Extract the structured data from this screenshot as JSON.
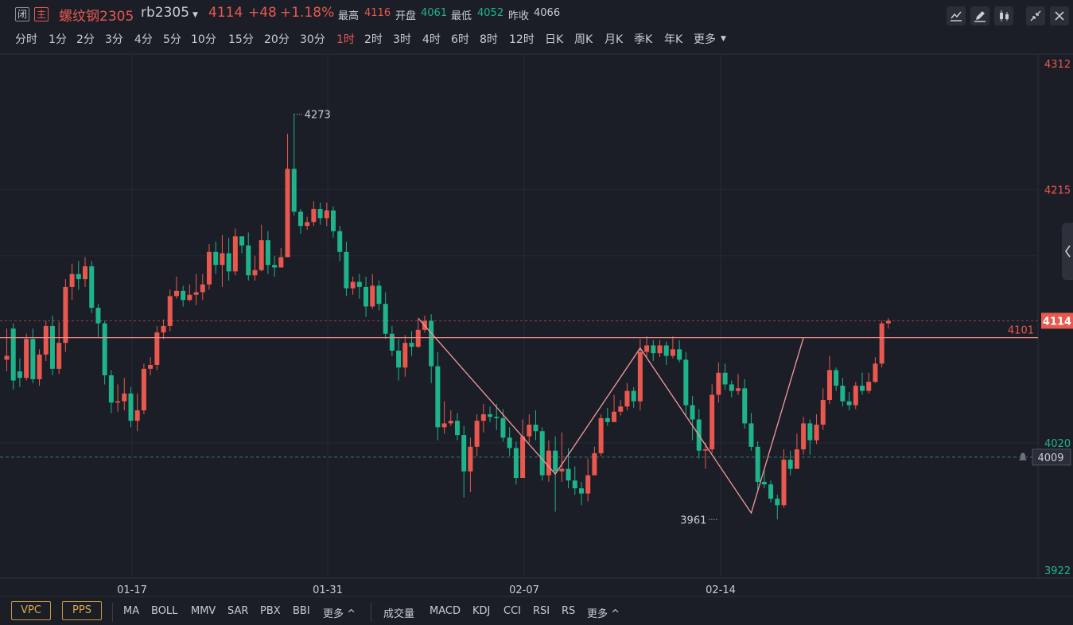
{
  "header": {
    "close_tag": "闭",
    "main_tag": "主",
    "name": "螺纹钢2305",
    "code": "rb2305",
    "last": "4114",
    "change": "+48",
    "change_pct": "+1.18%",
    "high_label": "最高",
    "high": "4116",
    "open_label": "开盘",
    "open": "4061",
    "low_label": "最低",
    "low": "4052",
    "prev_close_label": "昨收",
    "prev_close": "4066"
  },
  "toolbar_icons": [
    "line-chart-icon",
    "draw-pencil-icon",
    "candlestick-icon",
    "collapse-icon",
    "close-icon"
  ],
  "periods": [
    "分时",
    "1分",
    "2分",
    "3分",
    "4分",
    "5分",
    "10分",
    "15分",
    "20分",
    "30分",
    "1时",
    "2时",
    "3时",
    "4时",
    "6时",
    "8时",
    "12时",
    "日K",
    "周K",
    "月K",
    "季K",
    "年K",
    "更多"
  ],
  "active_period": "1时",
  "price_axis": {
    "ticks": [
      "4312",
      "4215",
      "4020",
      "3922"
    ],
    "last_price_tag": "4114",
    "line_label": "4101",
    "alert_price": "4009"
  },
  "x_axis": {
    "labels": [
      "01-17",
      "01-31",
      "02-07",
      "02-14"
    ]
  },
  "annotations": {
    "high_mark": "4273",
    "low_mark": "3961"
  },
  "colors": {
    "up": "#e8584f",
    "down": "#1fb38a",
    "background": "#1b1e27",
    "accent": "#d9a94a"
  },
  "footer": {
    "buttons": [
      "VPC",
      "PPS"
    ],
    "main_indicators": [
      "MA",
      "BOLL",
      "MMV",
      "SAR",
      "PBX",
      "BBI",
      "更多 ^"
    ],
    "sub_indicators": [
      "成交量",
      "MACD",
      "KDJ",
      "CCI",
      "RSI",
      "RS",
      "更多 ^"
    ]
  },
  "chart_data": {
    "type": "candlestick",
    "ylim": [
      3922,
      4312
    ],
    "candles": [
      [
        4084,
        4087,
        4108,
        4075
      ],
      [
        4108,
        4068,
        4112,
        4061
      ],
      [
        4075,
        4070,
        4085,
        4063
      ],
      [
        4070,
        4100,
        4104,
        4068
      ],
      [
        4100,
        4069,
        4108,
        4066
      ],
      [
        4069,
        4088,
        4092,
        4064
      ],
      [
        4088,
        4110,
        4114,
        4083
      ],
      [
        4110,
        4077,
        4118,
        4072
      ],
      [
        4077,
        4097,
        4113,
        4073
      ],
      [
        4097,
        4140,
        4146,
        4090
      ],
      [
        4140,
        4150,
        4158,
        4130
      ],
      [
        4150,
        4146,
        4160,
        4138
      ],
      [
        4146,
        4156,
        4163,
        4140
      ],
      [
        4156,
        4124,
        4160,
        4120
      ],
      [
        4124,
        4112,
        4127,
        4101
      ],
      [
        4112,
        4072,
        4114,
        4065
      ],
      [
        4072,
        4051,
        4076,
        4043
      ],
      [
        4051,
        4052,
        4065,
        4044
      ],
      [
        4052,
        4058,
        4070,
        4045
      ],
      [
        4058,
        4037,
        4063,
        4032
      ],
      [
        4037,
        4045,
        4058,
        4029
      ],
      [
        4045,
        4077,
        4081,
        4042
      ],
      [
        4077,
        4080,
        4086,
        4072
      ],
      [
        4080,
        4105,
        4110,
        4076
      ],
      [
        4105,
        4110,
        4115,
        4100
      ],
      [
        4110,
        4133,
        4138,
        4106
      ],
      [
        4133,
        4137,
        4148,
        4131
      ],
      [
        4137,
        4130,
        4141,
        4125
      ],
      [
        4130,
        4134,
        4142,
        4129
      ],
      [
        4134,
        4136,
        4150,
        4126
      ],
      [
        4136,
        4142,
        4150,
        4130
      ],
      [
        4142,
        4167,
        4173,
        4138
      ],
      [
        4167,
        4157,
        4175,
        4150
      ],
      [
        4157,
        4166,
        4180,
        4140
      ],
      [
        4166,
        4152,
        4178,
        4145
      ],
      [
        4152,
        4179,
        4185,
        4149
      ],
      [
        4179,
        4172,
        4178,
        4166
      ],
      [
        4172,
        4149,
        4182,
        4145
      ],
      [
        4149,
        4153,
        4164,
        4145
      ],
      [
        4153,
        4176,
        4188,
        4152
      ],
      [
        4176,
        4157,
        4183,
        4150
      ],
      [
        4157,
        4155,
        4164,
        4148
      ],
      [
        4155,
        4163,
        4170,
        4156
      ],
      [
        4163,
        4231,
        4258,
        4222
      ],
      [
        4231,
        4198,
        4273,
        4195
      ],
      [
        4198,
        4187,
        4200,
        4181
      ],
      [
        4187,
        4190,
        4194,
        4184
      ],
      [
        4190,
        4200,
        4206,
        4187
      ],
      [
        4200,
        4193,
        4205,
        4188
      ],
      [
        4193,
        4199,
        4205,
        4187
      ],
      [
        4199,
        4183,
        4202,
        4178
      ],
      [
        4183,
        4167,
        4187,
        4160
      ],
      [
        4167,
        4139,
        4175,
        4133
      ],
      [
        4139,
        4144,
        4148,
        4134
      ],
      [
        4144,
        4140,
        4150,
        4131
      ],
      [
        4140,
        4125,
        4148,
        4117
      ],
      [
        4125,
        4141,
        4150,
        4123
      ],
      [
        4141,
        4127,
        4145,
        4122
      ],
      [
        4127,
        4104,
        4136,
        4100
      ],
      [
        4104,
        4091,
        4110,
        4087
      ],
      [
        4091,
        4078,
        4100,
        4068
      ],
      [
        4078,
        4097,
        4103,
        4071
      ],
      [
        4097,
        4094,
        4106,
        4087
      ],
      [
        4094,
        4107,
        4115,
        4093
      ],
      [
        4107,
        4114,
        4118,
        4105
      ],
      [
        4114,
        4079,
        4119,
        4066
      ],
      [
        4079,
        4032,
        4090,
        4022
      ],
      [
        4032,
        4035,
        4052,
        4027
      ],
      [
        4035,
        4037,
        4045,
        4033
      ],
      [
        4037,
        4026,
        4043,
        4022
      ],
      [
        4026,
        3998,
        4033,
        3978
      ],
      [
        3998,
        4017,
        4024,
        3982
      ],
      [
        4017,
        4037,
        4042,
        4010
      ],
      [
        4037,
        4042,
        4050,
        4028
      ],
      [
        4042,
        4040,
        4048,
        4036
      ],
      [
        4040,
        4039,
        4050,
        4030
      ],
      [
        4039,
        4024,
        4046,
        4021
      ],
      [
        4024,
        4016,
        4032,
        4010
      ],
      [
        4016,
        3993,
        4021,
        3988
      ],
      [
        3993,
        4025,
        4038,
        4017
      ],
      [
        4025,
        4034,
        4042,
        4020
      ],
      [
        4034,
        4029,
        4045,
        4022
      ],
      [
        4029,
        3995,
        4032,
        3991
      ],
      [
        3995,
        4014,
        4022,
        3990
      ],
      [
        4014,
        3998,
        4025,
        3967
      ],
      [
        3998,
        4000,
        4028,
        3990
      ],
      [
        4000,
        3991,
        4016,
        3985
      ],
      [
        3991,
        3985,
        4002,
        3980
      ],
      [
        3985,
        3981,
        3990,
        3972
      ],
      [
        3981,
        3995,
        4008,
        3975
      ],
      [
        3995,
        4012,
        4017,
        4008
      ],
      [
        4012,
        4039,
        4042,
        4010
      ],
      [
        4039,
        4036,
        4047,
        4033
      ],
      [
        4036,
        4044,
        4057,
        4039
      ],
      [
        4044,
        4048,
        4053,
        4041
      ],
      [
        4048,
        4060,
        4066,
        4045
      ],
      [
        4060,
        4052,
        4063,
        4047
      ],
      [
        4052,
        4090,
        4100,
        4045
      ],
      [
        4090,
        4095,
        4102,
        4086
      ],
      [
        4095,
        4089,
        4099,
        4083
      ],
      [
        4089,
        4095,
        4099,
        4086
      ],
      [
        4095,
        4087,
        4098,
        4080
      ],
      [
        4087,
        4092,
        4102,
        4085
      ],
      [
        4092,
        4084,
        4099,
        4082
      ],
      [
        4084,
        4049,
        4090,
        4041
      ],
      [
        4049,
        4038,
        4056,
        4022
      ],
      [
        4038,
        4014,
        4046,
        4008
      ],
      [
        4014,
        4015,
        4020,
        4000
      ],
      [
        4015,
        4057,
        4065,
        4012
      ],
      [
        4057,
        4074,
        4082,
        4051
      ],
      [
        4074,
        4065,
        4081,
        4061
      ],
      [
        4065,
        4060,
        4068,
        4055
      ],
      [
        4060,
        4062,
        4073,
        4057
      ],
      [
        4062,
        4035,
        4069,
        4031
      ],
      [
        4035,
        4017,
        4043,
        4014
      ],
      [
        4017,
        3990,
        4021,
        3984
      ],
      [
        3990,
        3988,
        4000,
        3985
      ],
      [
        3988,
        3977,
        3991,
        3974
      ],
      [
        3977,
        3972,
        3980,
        3961
      ],
      [
        3972,
        4007,
        4015,
        3970
      ],
      [
        4007,
        4000,
        4014,
        3995
      ],
      [
        4000,
        4015,
        4027,
        4000
      ],
      [
        4015,
        4035,
        4040,
        4011
      ],
      [
        4035,
        4022,
        4038,
        4011
      ],
      [
        4022,
        4034,
        4042,
        4019
      ],
      [
        4034,
        4053,
        4062,
        4030
      ],
      [
        4053,
        4076,
        4087,
        4050
      ],
      [
        4076,
        4064,
        4078,
        4060
      ],
      [
        4064,
        4052,
        4070,
        4048
      ],
      [
        4052,
        4049,
        4059,
        4045
      ],
      [
        4049,
        4064,
        4067,
        4046
      ],
      [
        4064,
        4060,
        4074,
        4057
      ],
      [
        4060,
        4067,
        4074,
        4058
      ],
      [
        4067,
        4081,
        4086,
        4066
      ],
      [
        4081,
        4112,
        4114,
        4078
      ],
      [
        4112,
        4114,
        4116,
        4108
      ]
    ],
    "pattern_line": [
      [
        63,
        4116
      ],
      [
        84,
        3996
      ],
      [
        97,
        4093
      ],
      [
        114,
        3966
      ],
      [
        122,
        4101
      ]
    ],
    "horizontal_line": 4101,
    "last_price": 4114,
    "alert_line": 4009
  }
}
